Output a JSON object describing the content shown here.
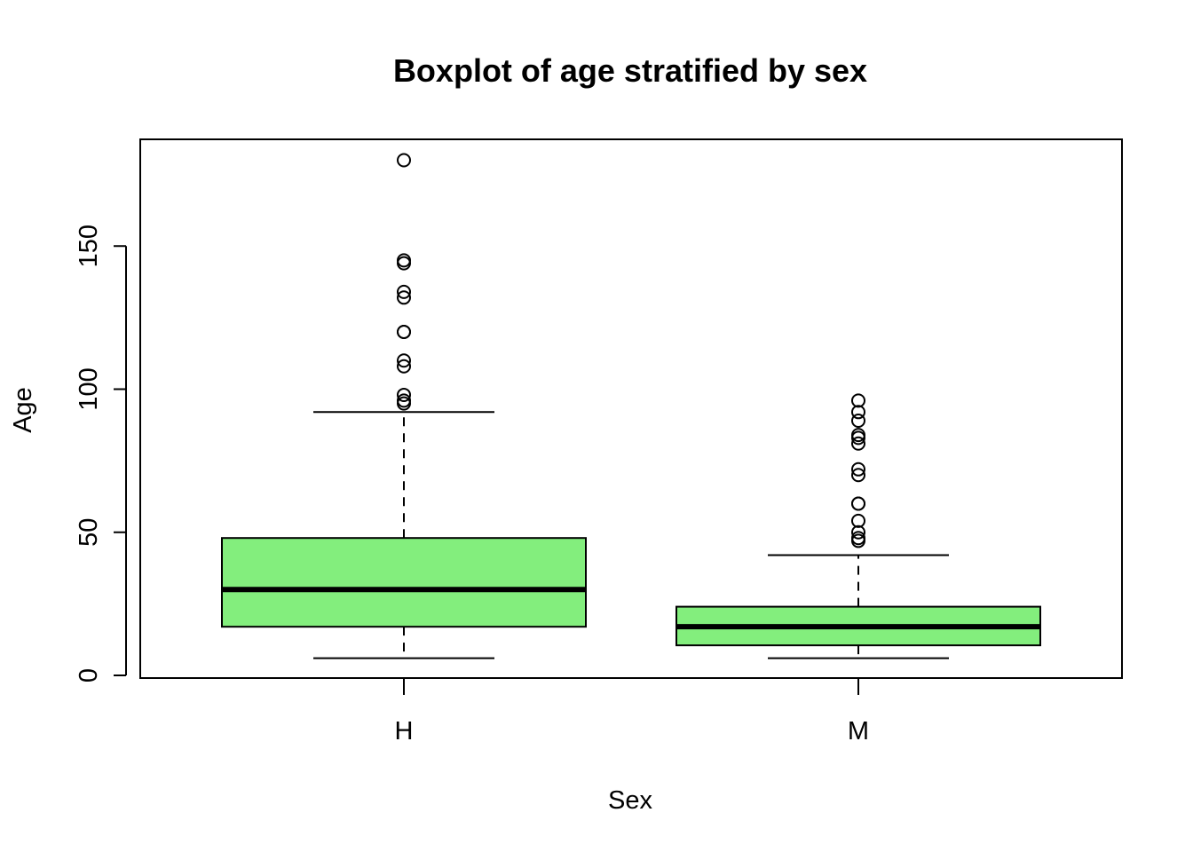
{
  "chart_data": {
    "type": "boxplot",
    "title": "Boxplot of age stratified by sex",
    "xlabel": "Sex",
    "ylabel": "Age",
    "ylim": [
      0,
      186
    ],
    "yticks": [
      0,
      50,
      100,
      150
    ],
    "ytick_labels": [
      "0",
      "50",
      "100",
      "150"
    ],
    "categories": [
      "H",
      "M"
    ],
    "box_color": "#83ee7d",
    "boxes": [
      {
        "name": "H",
        "whisker_low": 6,
        "q1": 17,
        "median": 30,
        "q3": 48,
        "whisker_high": 92,
        "outliers": [
          95,
          96,
          98,
          108,
          110,
          120,
          120,
          132,
          134,
          144,
          145,
          180
        ]
      },
      {
        "name": "M",
        "whisker_low": 6,
        "q1": 10.5,
        "median": 17,
        "q3": 24,
        "whisker_high": 42,
        "outliers": [
          47,
          48,
          50,
          54,
          60,
          60,
          70,
          72,
          81,
          83,
          84,
          89,
          92,
          96
        ]
      }
    ]
  }
}
